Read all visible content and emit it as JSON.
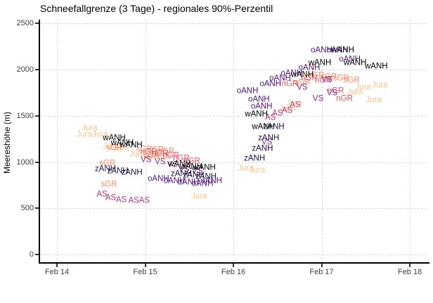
{
  "chart": {
    "title": "Schneefallgrenze (3 Tage) - regionales 90%-Perzentil",
    "ylabel": "Meereshöhe (m)"
  },
  "chart_data": {
    "type": "scatter",
    "marker": "text-label",
    "title": "Schneefallgrenze (3 Tage) - regionales 90%-Perzentil",
    "xlabel": "",
    "ylabel": "Meereshöhe (m)",
    "grid": "dashed-major",
    "legend": "none",
    "x_axis": {
      "tick_days": [
        14,
        15,
        16,
        17,
        18
      ],
      "tick_labels": [
        "Feb 14",
        "Feb 15",
        "Feb 16",
        "Feb 17",
        "Feb 18"
      ],
      "range_days": [
        13.8,
        18.2
      ]
    },
    "y_axis": {
      "ticks": [
        0,
        500,
        1000,
        1500,
        2000,
        2500
      ],
      "range": [
        0,
        2500
      ]
    },
    "series": [
      {
        "name": "Jura",
        "color": "#FEC287",
        "points": [
          [
            14.31,
            1295
          ],
          [
            14.37,
            1360
          ],
          [
            14.49,
            1295
          ],
          [
            14.61,
            1165
          ],
          [
            14.73,
            1140
          ],
          [
            14.91,
            1080
          ],
          [
            15.07,
            1065
          ],
          [
            15.2,
            1055
          ],
          [
            15.61,
            625
          ],
          [
            16.14,
            930
          ],
          [
            16.27,
            905
          ],
          [
            16.61,
            1575
          ],
          [
            16.69,
            1625
          ],
          [
            17.38,
            1750
          ],
          [
            17.47,
            1800
          ],
          [
            17.59,
            1665
          ],
          [
            17.66,
            1825
          ]
        ]
      },
      {
        "name": "sGR",
        "color": "#FB8861",
        "points": [
          [
            14.57,
            980
          ],
          [
            14.59,
            755
          ],
          [
            14.65,
            1150
          ],
          [
            14.99,
            1135
          ],
          [
            15.07,
            1055
          ],
          [
            15.12,
            1125
          ],
          [
            15.24,
            1110
          ],
          [
            16.78,
            1855
          ],
          [
            16.94,
            1930
          ],
          [
            17.08,
            1915
          ],
          [
            17.22,
            1900
          ],
          [
            17.34,
            1880
          ]
        ]
      },
      {
        "name": "nGR",
        "color": "#E65164",
        "points": [
          [
            15.04,
            1105
          ],
          [
            15.17,
            1090
          ],
          [
            15.29,
            1065
          ],
          [
            15.41,
            1035
          ],
          [
            15.53,
            1005
          ],
          [
            16.64,
            1840
          ],
          [
            16.86,
            1900
          ],
          [
            17.02,
            1880
          ],
          [
            17.16,
            1765
          ],
          [
            17.26,
            1680
          ]
        ]
      },
      {
        "name": "AS",
        "color": "#B63679",
        "points": [
          [
            14.51,
            645
          ],
          [
            14.61,
            610
          ],
          [
            14.73,
            585
          ],
          [
            14.87,
            580
          ],
          [
            14.99,
            580
          ],
          [
            16.42,
            1475
          ],
          [
            16.5,
            1520
          ],
          [
            16.61,
            1550
          ],
          [
            16.7,
            1610
          ]
        ]
      },
      {
        "name": "VS",
        "color": "#822681",
        "points": [
          [
            15.01,
            1020
          ],
          [
            15.17,
            995
          ],
          [
            15.31,
            965
          ],
          [
            15.44,
            915
          ],
          [
            15.59,
            895
          ],
          [
            16.38,
            1210
          ],
          [
            16.78,
            1800
          ],
          [
            16.96,
            1680
          ],
          [
            17.06,
            1885
          ],
          [
            17.12,
            1740
          ]
        ]
      },
      {
        "name": "oANH",
        "color": "#51127C",
        "points": [
          [
            15.15,
            815
          ],
          [
            15.33,
            790
          ],
          [
            15.49,
            775
          ],
          [
            15.65,
            760
          ],
          [
            15.75,
            790
          ],
          [
            16.16,
            1765
          ],
          [
            16.29,
            1675
          ],
          [
            16.32,
            1595
          ],
          [
            16.42,
            1840
          ],
          [
            16.53,
            1900
          ],
          [
            16.66,
            1955
          ],
          [
            16.86,
            2015
          ],
          [
            17.0,
            2205
          ],
          [
            17.18,
            2205
          ],
          [
            17.32,
            2105
          ]
        ]
      },
      {
        "name": "zANH",
        "color": "#1D1147",
        "points": [
          [
            14.55,
            920
          ],
          [
            14.69,
            895
          ],
          [
            14.85,
            880
          ],
          [
            15.41,
            865
          ],
          [
            15.55,
            850
          ],
          [
            15.69,
            835
          ],
          [
            16.24,
            1035
          ],
          [
            16.33,
            1140
          ],
          [
            16.4,
            1255
          ],
          [
            16.46,
            1375
          ]
        ]
      },
      {
        "name": "wANH",
        "color": "#000004",
        "points": [
          [
            14.65,
            1255
          ],
          [
            14.74,
            1200
          ],
          [
            14.84,
            1180
          ],
          [
            15.39,
            975
          ],
          [
            15.52,
            945
          ],
          [
            15.67,
            935
          ],
          [
            16.26,
            1515
          ],
          [
            16.34,
            1375
          ],
          [
            16.78,
            1940
          ],
          [
            16.98,
            2070
          ],
          [
            17.24,
            2205
          ],
          [
            17.38,
            2070
          ],
          [
            17.62,
            2030
          ]
        ]
      }
    ]
  }
}
